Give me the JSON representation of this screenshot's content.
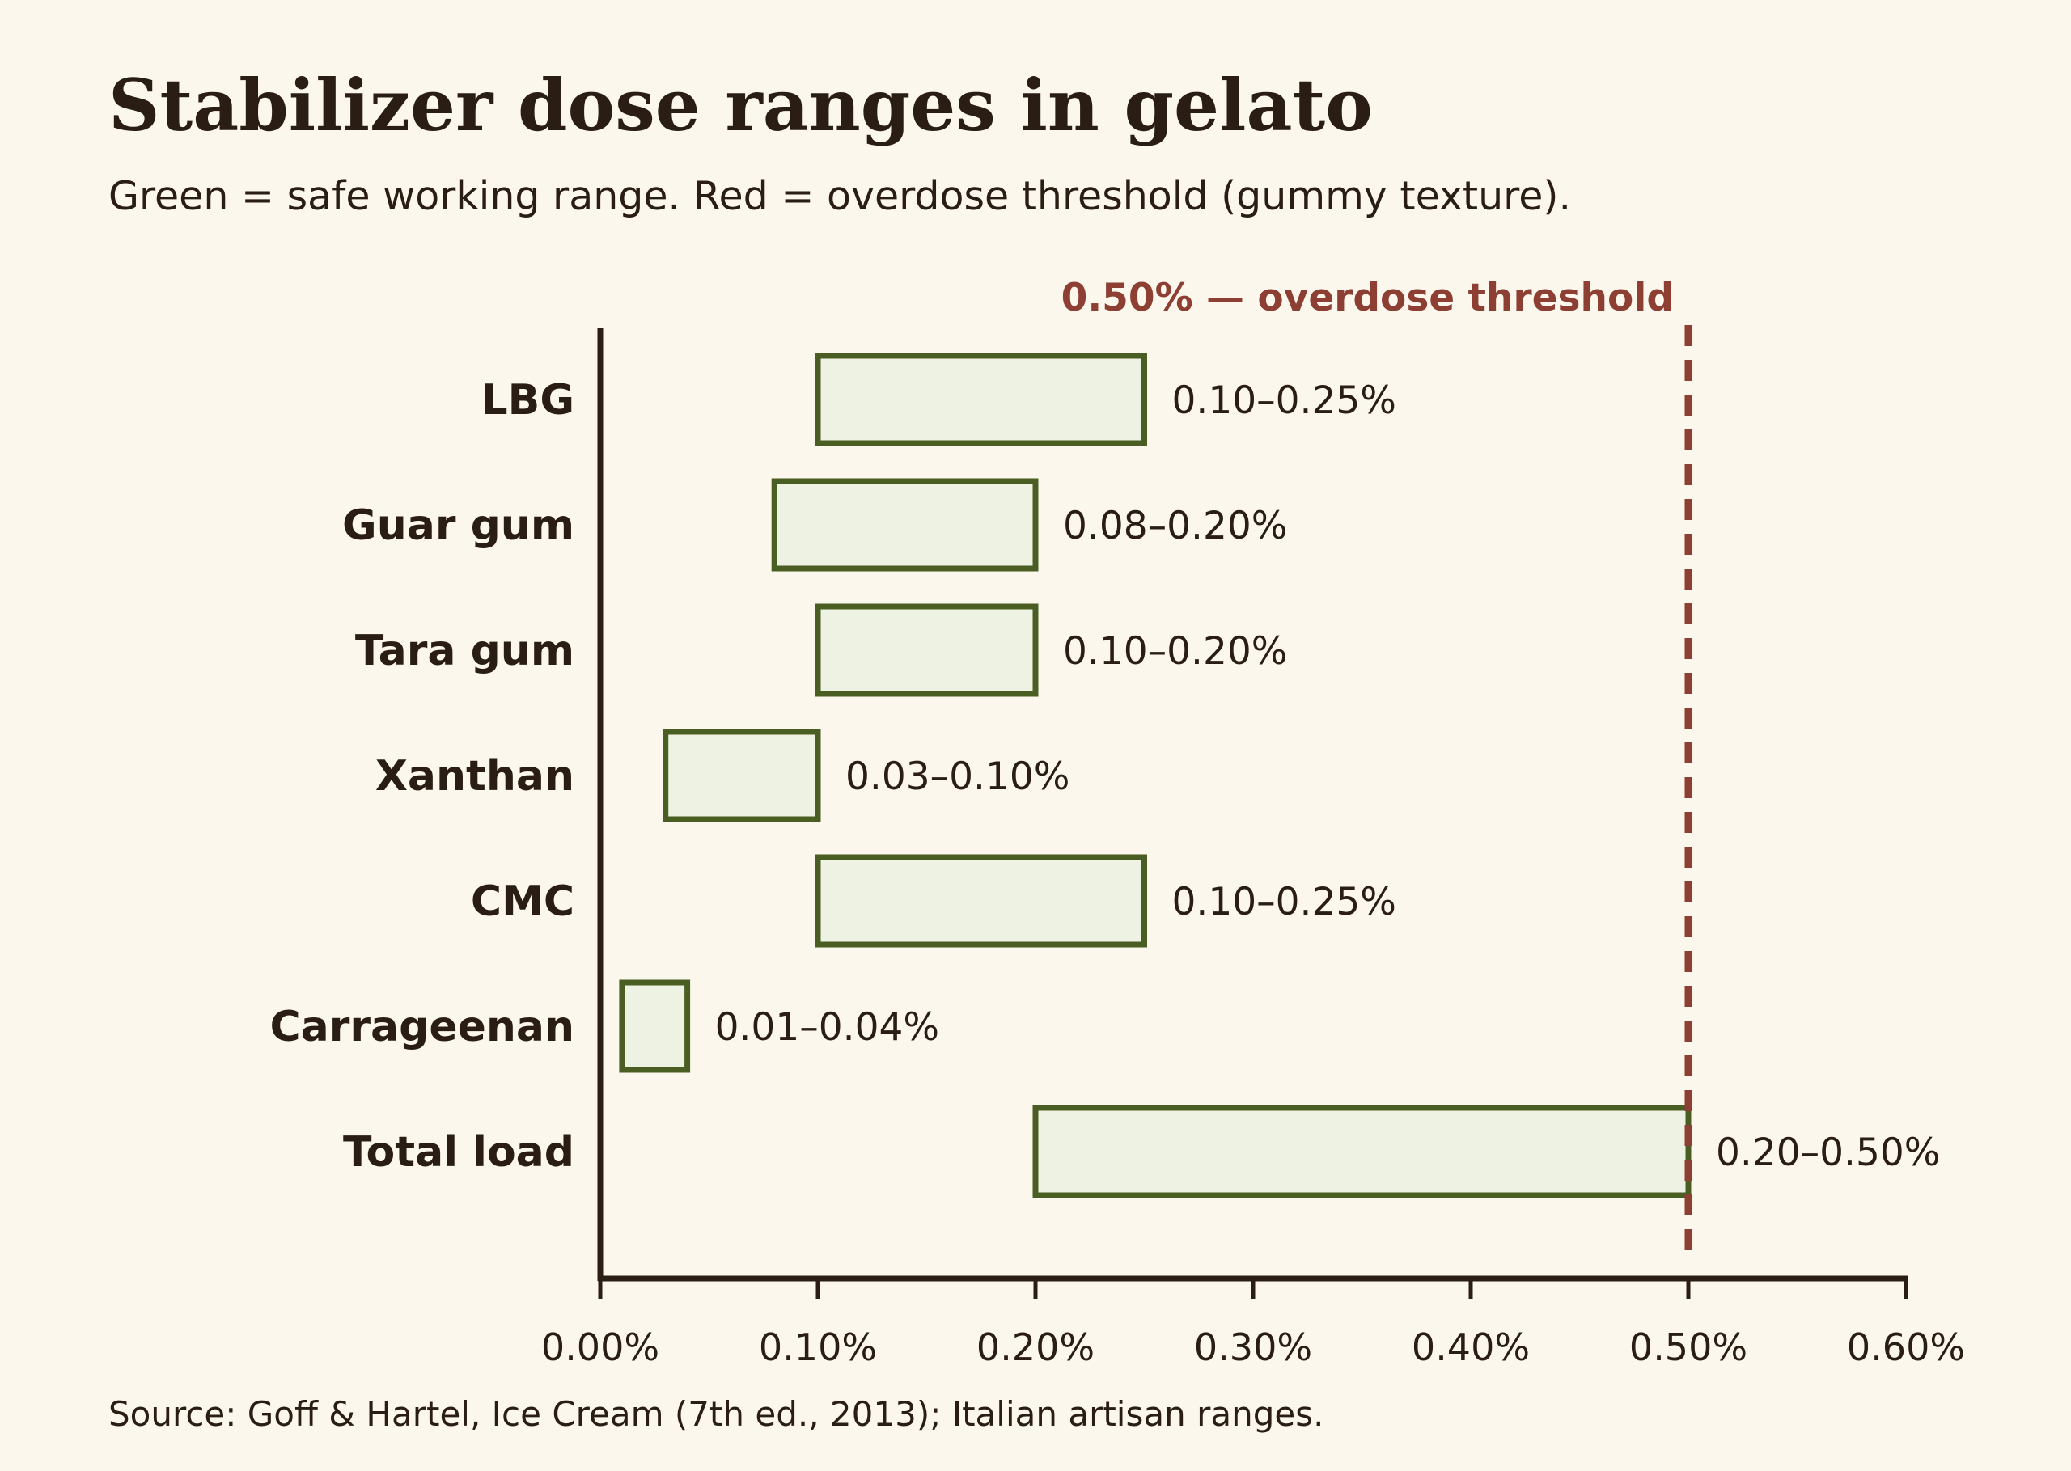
{
  "header": {
    "title": "Stabilizer dose ranges in gelato",
    "subtitle": "Green = safe working range. Red = overdose threshold (gummy texture)."
  },
  "footer": {
    "source": "Source: Goff & Hartel, Ice Cream (7th ed., 2013); Italian artisan ranges."
  },
  "colors": {
    "background": "#fcf7ec",
    "text": "#2a1e14",
    "range_stroke": "#4a5e24",
    "range_fill": "#eef2e2",
    "threshold": "#8c3f32",
    "axis": "#2a1e14"
  },
  "chart_data": {
    "type": "bar",
    "subtype": "floating-range",
    "orientation": "horizontal",
    "title": "Stabilizer dose ranges in gelato",
    "subtitle": "Green = safe working range. Red = overdose threshold (gummy texture).",
    "xlabel": "",
    "ylabel": "",
    "unit": "%",
    "xlim": [
      0,
      0.6
    ],
    "xticks": [
      {
        "value": 0.0,
        "label": "0.00%"
      },
      {
        "value": 0.1,
        "label": "0.10%"
      },
      {
        "value": 0.2,
        "label": "0.20%"
      },
      {
        "value": 0.3,
        "label": "0.30%"
      },
      {
        "value": 0.4,
        "label": "0.40%"
      },
      {
        "value": 0.5,
        "label": "0.50%"
      },
      {
        "value": 0.6,
        "label": "0.60%"
      }
    ],
    "grid": false,
    "categories": [
      "LBG",
      "Guar gum",
      "Tara gum",
      "Xanthan",
      "CMC",
      "Carrageenan",
      "Total load"
    ],
    "ranges": [
      {
        "category": "LBG",
        "low": 0.1,
        "high": 0.25,
        "label": "0.10–0.25%"
      },
      {
        "category": "Guar gum",
        "low": 0.08,
        "high": 0.2,
        "label": "0.08–0.20%"
      },
      {
        "category": "Tara gum",
        "low": 0.1,
        "high": 0.2,
        "label": "0.10–0.20%"
      },
      {
        "category": "Xanthan",
        "low": 0.03,
        "high": 0.1,
        "label": "0.03–0.10%"
      },
      {
        "category": "CMC",
        "low": 0.1,
        "high": 0.25,
        "label": "0.10–0.25%"
      },
      {
        "category": "Carrageenan",
        "low": 0.01,
        "high": 0.04,
        "label": "0.01–0.04%"
      },
      {
        "category": "Total load",
        "low": 0.2,
        "high": 0.5,
        "label": "0.20–0.50%"
      }
    ],
    "reference_line": {
      "value": 0.5,
      "label": "0.50% — overdose threshold",
      "style": "dashed",
      "color": "#8c3f32"
    },
    "source": "Source: Goff & Hartel, Ice Cream (7th ed., 2013); Italian artisan ranges."
  }
}
